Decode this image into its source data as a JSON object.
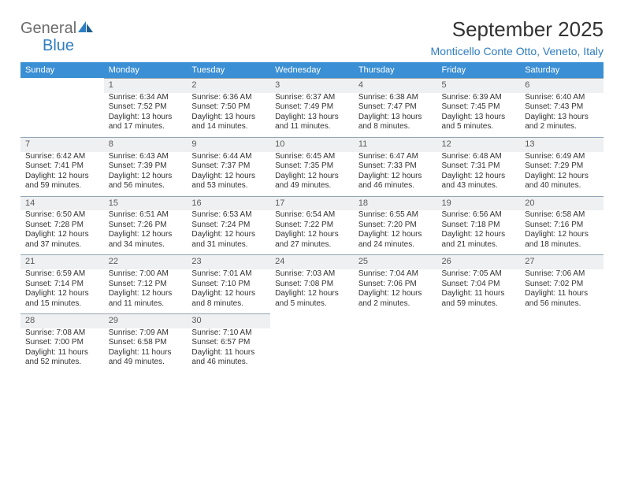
{
  "brand": {
    "word1": "General",
    "word2": "Blue"
  },
  "title": "September 2025",
  "location": "Monticello Conte Otto, Veneto, Italy",
  "colors": {
    "header_bg": "#3b8fd4",
    "header_text": "#ffffff",
    "daynum_bg": "#eef0f1",
    "daynum_border": "#94a6b3",
    "brand_accent": "#2f7ec0",
    "text": "#333333"
  },
  "columns": [
    "Sunday",
    "Monday",
    "Tuesday",
    "Wednesday",
    "Thursday",
    "Friday",
    "Saturday"
  ],
  "weeks": [
    [
      null,
      {
        "n": "1",
        "sr": "Sunrise: 6:34 AM",
        "ss": "Sunset: 7:52 PM",
        "d1": "Daylight: 13 hours",
        "d2": "and 17 minutes."
      },
      {
        "n": "2",
        "sr": "Sunrise: 6:36 AM",
        "ss": "Sunset: 7:50 PM",
        "d1": "Daylight: 13 hours",
        "d2": "and 14 minutes."
      },
      {
        "n": "3",
        "sr": "Sunrise: 6:37 AM",
        "ss": "Sunset: 7:49 PM",
        "d1": "Daylight: 13 hours",
        "d2": "and 11 minutes."
      },
      {
        "n": "4",
        "sr": "Sunrise: 6:38 AM",
        "ss": "Sunset: 7:47 PM",
        "d1": "Daylight: 13 hours",
        "d2": "and 8 minutes."
      },
      {
        "n": "5",
        "sr": "Sunrise: 6:39 AM",
        "ss": "Sunset: 7:45 PM",
        "d1": "Daylight: 13 hours",
        "d2": "and 5 minutes."
      },
      {
        "n": "6",
        "sr": "Sunrise: 6:40 AM",
        "ss": "Sunset: 7:43 PM",
        "d1": "Daylight: 13 hours",
        "d2": "and 2 minutes."
      }
    ],
    [
      {
        "n": "7",
        "sr": "Sunrise: 6:42 AM",
        "ss": "Sunset: 7:41 PM",
        "d1": "Daylight: 12 hours",
        "d2": "and 59 minutes."
      },
      {
        "n": "8",
        "sr": "Sunrise: 6:43 AM",
        "ss": "Sunset: 7:39 PM",
        "d1": "Daylight: 12 hours",
        "d2": "and 56 minutes."
      },
      {
        "n": "9",
        "sr": "Sunrise: 6:44 AM",
        "ss": "Sunset: 7:37 PM",
        "d1": "Daylight: 12 hours",
        "d2": "and 53 minutes."
      },
      {
        "n": "10",
        "sr": "Sunrise: 6:45 AM",
        "ss": "Sunset: 7:35 PM",
        "d1": "Daylight: 12 hours",
        "d2": "and 49 minutes."
      },
      {
        "n": "11",
        "sr": "Sunrise: 6:47 AM",
        "ss": "Sunset: 7:33 PM",
        "d1": "Daylight: 12 hours",
        "d2": "and 46 minutes."
      },
      {
        "n": "12",
        "sr": "Sunrise: 6:48 AM",
        "ss": "Sunset: 7:31 PM",
        "d1": "Daylight: 12 hours",
        "d2": "and 43 minutes."
      },
      {
        "n": "13",
        "sr": "Sunrise: 6:49 AM",
        "ss": "Sunset: 7:29 PM",
        "d1": "Daylight: 12 hours",
        "d2": "and 40 minutes."
      }
    ],
    [
      {
        "n": "14",
        "sr": "Sunrise: 6:50 AM",
        "ss": "Sunset: 7:28 PM",
        "d1": "Daylight: 12 hours",
        "d2": "and 37 minutes."
      },
      {
        "n": "15",
        "sr": "Sunrise: 6:51 AM",
        "ss": "Sunset: 7:26 PM",
        "d1": "Daylight: 12 hours",
        "d2": "and 34 minutes."
      },
      {
        "n": "16",
        "sr": "Sunrise: 6:53 AM",
        "ss": "Sunset: 7:24 PM",
        "d1": "Daylight: 12 hours",
        "d2": "and 31 minutes."
      },
      {
        "n": "17",
        "sr": "Sunrise: 6:54 AM",
        "ss": "Sunset: 7:22 PM",
        "d1": "Daylight: 12 hours",
        "d2": "and 27 minutes."
      },
      {
        "n": "18",
        "sr": "Sunrise: 6:55 AM",
        "ss": "Sunset: 7:20 PM",
        "d1": "Daylight: 12 hours",
        "d2": "and 24 minutes."
      },
      {
        "n": "19",
        "sr": "Sunrise: 6:56 AM",
        "ss": "Sunset: 7:18 PM",
        "d1": "Daylight: 12 hours",
        "d2": "and 21 minutes."
      },
      {
        "n": "20",
        "sr": "Sunrise: 6:58 AM",
        "ss": "Sunset: 7:16 PM",
        "d1": "Daylight: 12 hours",
        "d2": "and 18 minutes."
      }
    ],
    [
      {
        "n": "21",
        "sr": "Sunrise: 6:59 AM",
        "ss": "Sunset: 7:14 PM",
        "d1": "Daylight: 12 hours",
        "d2": "and 15 minutes."
      },
      {
        "n": "22",
        "sr": "Sunrise: 7:00 AM",
        "ss": "Sunset: 7:12 PM",
        "d1": "Daylight: 12 hours",
        "d2": "and 11 minutes."
      },
      {
        "n": "23",
        "sr": "Sunrise: 7:01 AM",
        "ss": "Sunset: 7:10 PM",
        "d1": "Daylight: 12 hours",
        "d2": "and 8 minutes."
      },
      {
        "n": "24",
        "sr": "Sunrise: 7:03 AM",
        "ss": "Sunset: 7:08 PM",
        "d1": "Daylight: 12 hours",
        "d2": "and 5 minutes."
      },
      {
        "n": "25",
        "sr": "Sunrise: 7:04 AM",
        "ss": "Sunset: 7:06 PM",
        "d1": "Daylight: 12 hours",
        "d2": "and 2 minutes."
      },
      {
        "n": "26",
        "sr": "Sunrise: 7:05 AM",
        "ss": "Sunset: 7:04 PM",
        "d1": "Daylight: 11 hours",
        "d2": "and 59 minutes."
      },
      {
        "n": "27",
        "sr": "Sunrise: 7:06 AM",
        "ss": "Sunset: 7:02 PM",
        "d1": "Daylight: 11 hours",
        "d2": "and 56 minutes."
      }
    ],
    [
      {
        "n": "28",
        "sr": "Sunrise: 7:08 AM",
        "ss": "Sunset: 7:00 PM",
        "d1": "Daylight: 11 hours",
        "d2": "and 52 minutes."
      },
      {
        "n": "29",
        "sr": "Sunrise: 7:09 AM",
        "ss": "Sunset: 6:58 PM",
        "d1": "Daylight: 11 hours",
        "d2": "and 49 minutes."
      },
      {
        "n": "30",
        "sr": "Sunrise: 7:10 AM",
        "ss": "Sunset: 6:57 PM",
        "d1": "Daylight: 11 hours",
        "d2": "and 46 minutes."
      },
      null,
      null,
      null,
      null
    ]
  ]
}
